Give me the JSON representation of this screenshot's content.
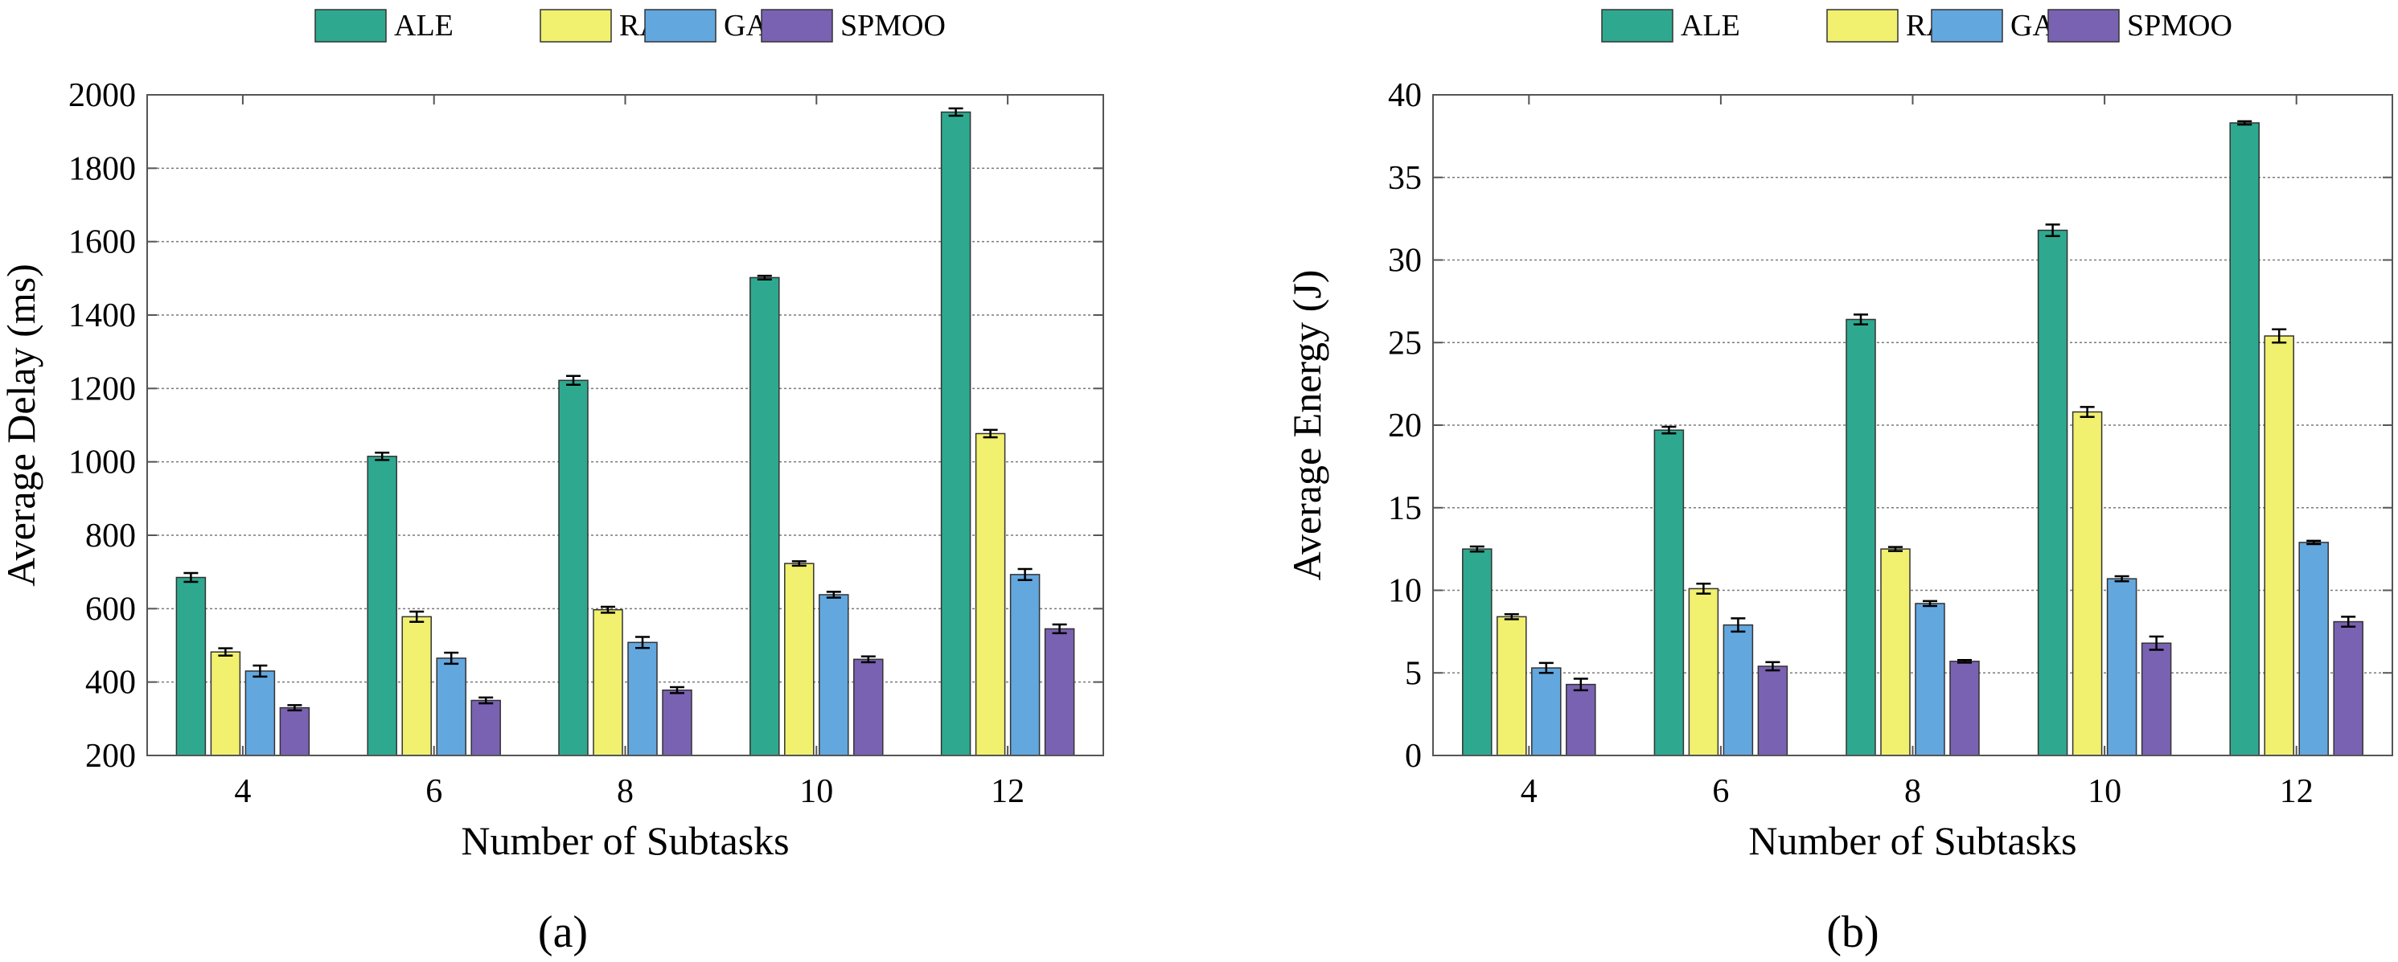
{
  "colors": {
    "ALE": "#2ea98f",
    "RA": "#f1f06f",
    "GA": "#63a7df",
    "SPMOO": "#7a62b2"
  },
  "chart_data": [
    {
      "type": "bar",
      "panel": "(a)",
      "xlabel": "Number of Subtasks",
      "ylabel": "Average Delay (ms)",
      "ylim": [
        200,
        2000
      ],
      "yticks": [
        "200",
        "400",
        "600",
        "800",
        "1000",
        "1200",
        "1400",
        "1600",
        "1800",
        "2000"
      ],
      "categories": [
        "4",
        "6",
        "8",
        "10",
        "12"
      ],
      "legend": [
        "ALE",
        "RA",
        "GA",
        "SPMOO"
      ],
      "series": [
        {
          "name": "ALE",
          "values": [
            685,
            1015,
            1222,
            1502,
            1953
          ],
          "errors": [
            12,
            10,
            12,
            5,
            10
          ]
        },
        {
          "name": "RA",
          "values": [
            482,
            578,
            597,
            723,
            1077
          ],
          "errors": [
            10,
            14,
            8,
            6,
            10
          ]
        },
        {
          "name": "GA",
          "values": [
            430,
            465,
            508,
            638,
            693
          ],
          "errors": [
            15,
            15,
            15,
            8,
            15
          ]
        },
        {
          "name": "SPMOO",
          "values": [
            330,
            350,
            378,
            462,
            545
          ],
          "errors": [
            7,
            8,
            8,
            8,
            12
          ]
        }
      ]
    },
    {
      "type": "bar",
      "panel": "(b)",
      "xlabel": "Number of Subtasks",
      "ylabel": "Average Energy (J)",
      "ylim": [
        0,
        40
      ],
      "yticks": [
        "0",
        "5",
        "10",
        "15",
        "20",
        "25",
        "30",
        "35",
        "40"
      ],
      "categories": [
        "4",
        "6",
        "8",
        "10",
        "12"
      ],
      "legend": [
        "ALE",
        "RA",
        "GA",
        "SPMOO"
      ],
      "series": [
        {
          "name": "ALE",
          "values": [
            12.5,
            19.7,
            26.4,
            31.8,
            38.3
          ],
          "errors": [
            0.15,
            0.2,
            0.3,
            0.35,
            0.1
          ]
        },
        {
          "name": "RA",
          "values": [
            8.4,
            10.1,
            12.5,
            20.8,
            25.4
          ],
          "errors": [
            0.15,
            0.3,
            0.12,
            0.3,
            0.4
          ]
        },
        {
          "name": "GA",
          "values": [
            5.3,
            7.9,
            9.2,
            10.7,
            12.9
          ],
          "errors": [
            0.3,
            0.4,
            0.15,
            0.15,
            0.1
          ]
        },
        {
          "name": "SPMOO",
          "values": [
            4.3,
            5.4,
            5.7,
            6.8,
            8.1
          ],
          "errors": [
            0.35,
            0.25,
            0.08,
            0.4,
            0.3
          ]
        }
      ]
    }
  ]
}
